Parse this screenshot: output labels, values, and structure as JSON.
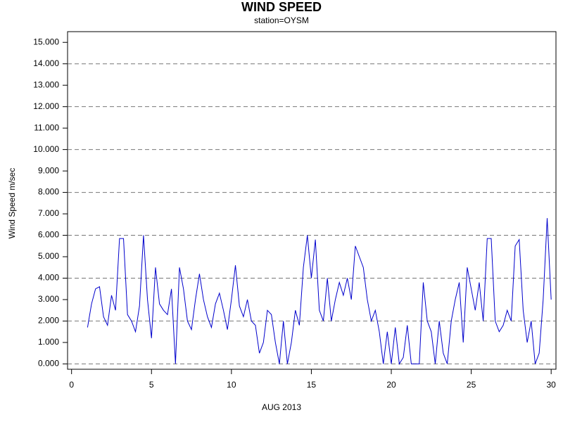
{
  "chart_data": {
    "type": "line",
    "title": "WIND SPEED",
    "subtitle": "station=OYSM",
    "xlabel": "AUG 2013",
    "ylabel": "Wind Speed m/sec",
    "xlim": [
      -0.25,
      30.3
    ],
    "xticks": [
      0,
      5,
      10,
      15,
      20,
      25,
      30
    ],
    "ylim": [
      -0.25,
      15.5
    ],
    "yticks": [
      {
        "value": 0,
        "label": "0.000"
      },
      {
        "value": 1,
        "label": "1.000"
      },
      {
        "value": 2,
        "label": "2.000"
      },
      {
        "value": 3,
        "label": "3.000"
      },
      {
        "value": 4,
        "label": "4.000"
      },
      {
        "value": 5,
        "label": "5.000"
      },
      {
        "value": 6,
        "label": "6.000"
      },
      {
        "value": 7,
        "label": "7.000"
      },
      {
        "value": 8,
        "label": "8.000"
      },
      {
        "value": 9,
        "label": "9.000"
      },
      {
        "value": 10,
        "label": "10.000"
      },
      {
        "value": 11,
        "label": "11.000"
      },
      {
        "value": 12,
        "label": "12.000"
      },
      {
        "value": 13,
        "label": "13.000"
      },
      {
        "value": 14,
        "label": "14.000"
      },
      {
        "value": 15,
        "label": "15.000"
      }
    ],
    "grid": true,
    "x": [
      1,
      1.25,
      1.5,
      1.75,
      2,
      2.25,
      2.5,
      2.75,
      3,
      3.25,
      3.5,
      3.75,
      4,
      4.25,
      4.5,
      4.75,
      5,
      5.25,
      5.5,
      5.75,
      6,
      6.25,
      6.5,
      6.75,
      7,
      7.25,
      7.5,
      7.75,
      8,
      8.25,
      8.5,
      8.75,
      9,
      9.25,
      9.5,
      9.75,
      10,
      10.25,
      10.5,
      10.75,
      11,
      11.25,
      11.5,
      11.75,
      12,
      12.25,
      12.5,
      12.75,
      13,
      13.25,
      13.5,
      13.75,
      14,
      14.25,
      14.5,
      14.75,
      15,
      15.25,
      15.5,
      15.75,
      16,
      16.25,
      16.5,
      16.75,
      17,
      17.25,
      17.5,
      17.75,
      18,
      18.25,
      18.5,
      18.75,
      19,
      19.25,
      19.5,
      19.75,
      20,
      20.25,
      20.5,
      20.75,
      21,
      21.25,
      21.5,
      21.75,
      22,
      22.25,
      22.5,
      22.75,
      23,
      23.25,
      23.5,
      23.75,
      24,
      24.25,
      24.5,
      24.75,
      25,
      25.25,
      25.5,
      25.75,
      26,
      26.25,
      26.5,
      26.75,
      27,
      27.25,
      27.5,
      27.75,
      28,
      28.25,
      28.5,
      28.75,
      29,
      29.25,
      29.5,
      29.75,
      30
    ],
    "series": [
      {
        "color": "#0000cc",
        "values": [
          1.7,
          2.8,
          3.5,
          3.6,
          2.2,
          1.8,
          3.2,
          2.5,
          5.85,
          5.85,
          2.3,
          2.0,
          1.5,
          2.7,
          6.0,
          3.0,
          1.2,
          4.5,
          2.8,
          2.5,
          2.3,
          3.5,
          0,
          4.5,
          3.5,
          2.0,
          1.6,
          3.0,
          4.2,
          3.0,
          2.2,
          1.7,
          2.8,
          3.3,
          2.5,
          1.6,
          3.0,
          4.6,
          2.7,
          2.2,
          3.0,
          2.0,
          1.8,
          0.5,
          1.0,
          2.5,
          2.3,
          1.0,
          0,
          2.0,
          0,
          1.0,
          2.5,
          1.8,
          4.5,
          6.0,
          4.0,
          5.8,
          2.5,
          2.0,
          4.0,
          2.0,
          3.0,
          3.8,
          3.2,
          4.0,
          3.0,
          5.5,
          5.0,
          4.5,
          3.0,
          2.0,
          2.5,
          1.5,
          0,
          1.5,
          0,
          1.7,
          0,
          0.3,
          1.8,
          0,
          0,
          0,
          3.8,
          2.0,
          1.5,
          0,
          2.0,
          0.5,
          0,
          2.0,
          3.0,
          3.8,
          1.0,
          4.5,
          3.5,
          2.5,
          3.8,
          2.0,
          5.85,
          5.85,
          2.0,
          1.5,
          1.8,
          2.5,
          2.0,
          5.5,
          5.8,
          2.5,
          1.0,
          2.0,
          0,
          0.5,
          3.0,
          6.8,
          3.0
        ]
      }
    ]
  }
}
